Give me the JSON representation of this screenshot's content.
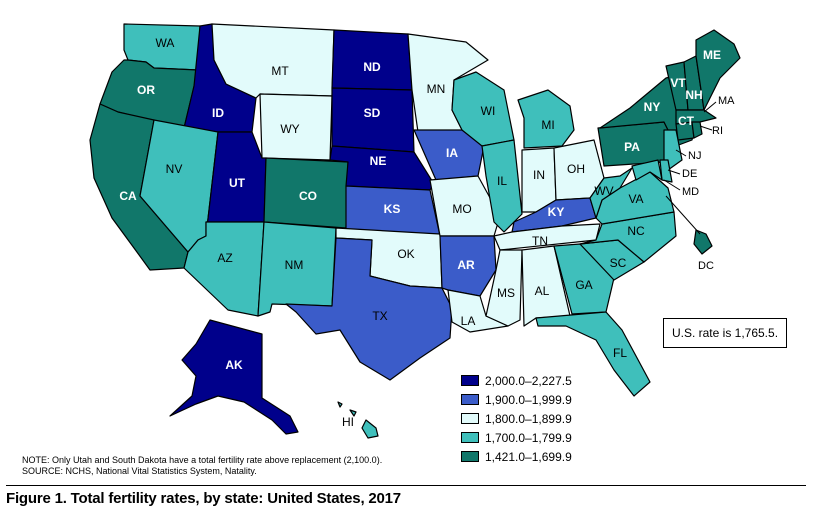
{
  "colors": {
    "dark_navy": "#00008b",
    "royal_blue": "#3b5cc9",
    "pale_cyan": "#e2fbfb",
    "turquoise": "#3fbfbb",
    "dark_teal": "#11776a"
  },
  "legend": {
    "items": [
      {
        "label": "2,000.0–2,227.5",
        "color": "#00008b"
      },
      {
        "label": "1,900.0–1,999.9",
        "color": "#3b5cc9"
      },
      {
        "label": "1,800.0–1,899.9",
        "color": "#e2fbfb"
      },
      {
        "label": "1,700.0–1,799.9",
        "color": "#3fbfbb"
      },
      {
        "label": "1,421.0–1,699.9",
        "color": "#11776a"
      }
    ]
  },
  "us_rate": "U.S. rate is 1,765.5.",
  "notes": {
    "note": "NOTE: Only Utah and South Dakota have a total fertility rate above replacement (2,100.0).",
    "source": "SOURCE: NCHS, National Vital Statistics System, Natality."
  },
  "caption": "Figure 1. Total fertility rates, by state: United States, 2017",
  "states": {
    "WA": {
      "label": "WA",
      "category": "1,700.0–1,799.9"
    },
    "OR": {
      "label": "OR",
      "category": "1,421.0–1,699.9"
    },
    "CA": {
      "label": "CA",
      "category": "1,421.0–1,699.9"
    },
    "ID": {
      "label": "ID",
      "category": "2,000.0–2,227.5"
    },
    "NV": {
      "label": "NV",
      "category": "1,700.0–1,799.9"
    },
    "MT": {
      "label": "MT",
      "category": "1,800.0–1,899.9"
    },
    "WY": {
      "label": "WY",
      "category": "1,800.0–1,899.9"
    },
    "UT": {
      "label": "UT",
      "category": "2,000.0–2,227.5"
    },
    "AZ": {
      "label": "AZ",
      "category": "1,700.0–1,799.9"
    },
    "CO": {
      "label": "CO",
      "category": "1,421.0–1,699.9"
    },
    "NM": {
      "label": "NM",
      "category": "1,700.0–1,799.9"
    },
    "ND": {
      "label": "ND",
      "category": "2,000.0–2,227.5"
    },
    "SD": {
      "label": "SD",
      "category": "2,000.0–2,227.5"
    },
    "NE": {
      "label": "NE",
      "category": "2,000.0–2,227.5"
    },
    "KS": {
      "label": "KS",
      "category": "1,900.0–1,999.9"
    },
    "OK": {
      "label": "OK",
      "category": "1,800.0–1,899.9"
    },
    "TX": {
      "label": "TX",
      "category": "1,900.0–1,999.9"
    },
    "MN": {
      "label": "MN",
      "category": "1,800.0–1,899.9"
    },
    "IA": {
      "label": "IA",
      "category": "1,900.0–1,999.9"
    },
    "MO": {
      "label": "MO",
      "category": "1,800.0–1,899.9"
    },
    "AR": {
      "label": "AR",
      "category": "1,900.0–1,999.9"
    },
    "LA": {
      "label": "LA",
      "category": "1,800.0–1,899.9"
    },
    "WI": {
      "label": "WI",
      "category": "1,700.0–1,799.9"
    },
    "IL": {
      "label": "IL",
      "category": "1,700.0–1,799.9"
    },
    "MI": {
      "label": "MI",
      "category": "1,700.0–1,799.9"
    },
    "IN": {
      "label": "IN",
      "category": "1,800.0–1,899.9"
    },
    "OH": {
      "label": "OH",
      "category": "1,800.0–1,899.9"
    },
    "KY": {
      "label": "KY",
      "category": "1,900.0–1,999.9"
    },
    "TN": {
      "label": "TN",
      "category": "1,800.0–1,899.9"
    },
    "MS": {
      "label": "MS",
      "category": "1,800.0–1,899.9"
    },
    "AL": {
      "label": "AL",
      "category": "1,800.0–1,899.9"
    },
    "GA": {
      "label": "GA",
      "category": "1,700.0–1,799.9"
    },
    "FL": {
      "label": "FL",
      "category": "1,700.0–1,799.9"
    },
    "SC": {
      "label": "SC",
      "category": "1,700.0–1,799.9"
    },
    "NC": {
      "label": "NC",
      "category": "1,700.0–1,799.9"
    },
    "VA": {
      "label": "VA",
      "category": "1,700.0–1,799.9"
    },
    "WV": {
      "label": "WV",
      "category": "1,700.0–1,799.9"
    },
    "PA": {
      "label": "PA",
      "category": "1,421.0–1,699.9"
    },
    "NY": {
      "label": "NY",
      "category": "1,421.0–1,699.9"
    },
    "VT": {
      "label": "VT",
      "category": "1,421.0–1,699.9"
    },
    "NH": {
      "label": "NH",
      "category": "1,421.0–1,699.9"
    },
    "ME": {
      "label": "ME",
      "category": "1,421.0–1,699.9"
    },
    "MA": {
      "label": "MA",
      "category": "1,421.0–1,699.9"
    },
    "CT": {
      "label": "CT",
      "category": "1,421.0–1,699.9"
    },
    "RI": {
      "label": "RI",
      "category": "1,421.0–1,699.9"
    },
    "NJ": {
      "label": "NJ",
      "category": "1,700.0–1,799.9"
    },
    "DE": {
      "label": "DE",
      "category": "1,700.0–1,799.9"
    },
    "MD": {
      "label": "MD",
      "category": "1,700.0–1,799.9"
    },
    "DC": {
      "label": "DC",
      "category": "1,421.0–1,699.9"
    },
    "AK": {
      "label": "AK",
      "category": "2,000.0–2,227.5"
    },
    "HI": {
      "label": "HI",
      "category": "1,700.0–1,799.9"
    }
  }
}
